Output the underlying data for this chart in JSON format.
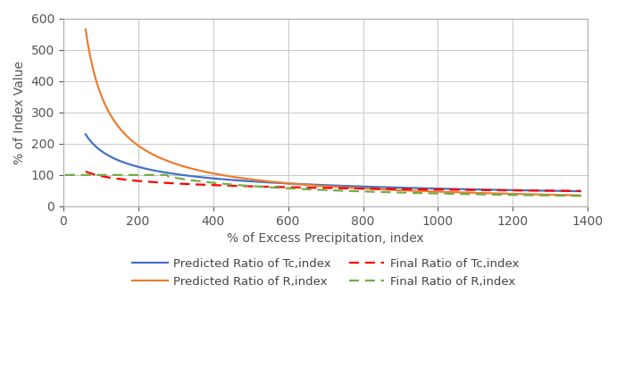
{
  "title": "",
  "xlabel": "% of Excess Precipitation, index",
  "ylabel": "% of Index Value",
  "xlim": [
    0,
    1400
  ],
  "ylim": [
    0,
    600
  ],
  "xticks": [
    0,
    200,
    400,
    600,
    800,
    1000,
    1200,
    1400
  ],
  "yticks": [
    0,
    100,
    200,
    300,
    400,
    500,
    600
  ],
  "grid_color": "#c8c8c8",
  "bg_color": "#ffffff",
  "line_blue_color": "#4472c4",
  "line_orange_color": "#ed7d31",
  "line_red_color": "#ff0000",
  "line_green_color": "#70ad47",
  "legend_labels_row1": [
    "Predicted Ratio of Tc,index",
    "Predicted Ratio of R,index"
  ],
  "legend_labels_row2": [
    "Final Ratio of Tc,index",
    "Final Ratio of R,index"
  ],
  "xlabel_fontsize": 10,
  "ylabel_fontsize": 10,
  "tick_fontsize": 10,
  "legend_fontsize": 9.5,
  "spine_color": "#aaaaaa"
}
